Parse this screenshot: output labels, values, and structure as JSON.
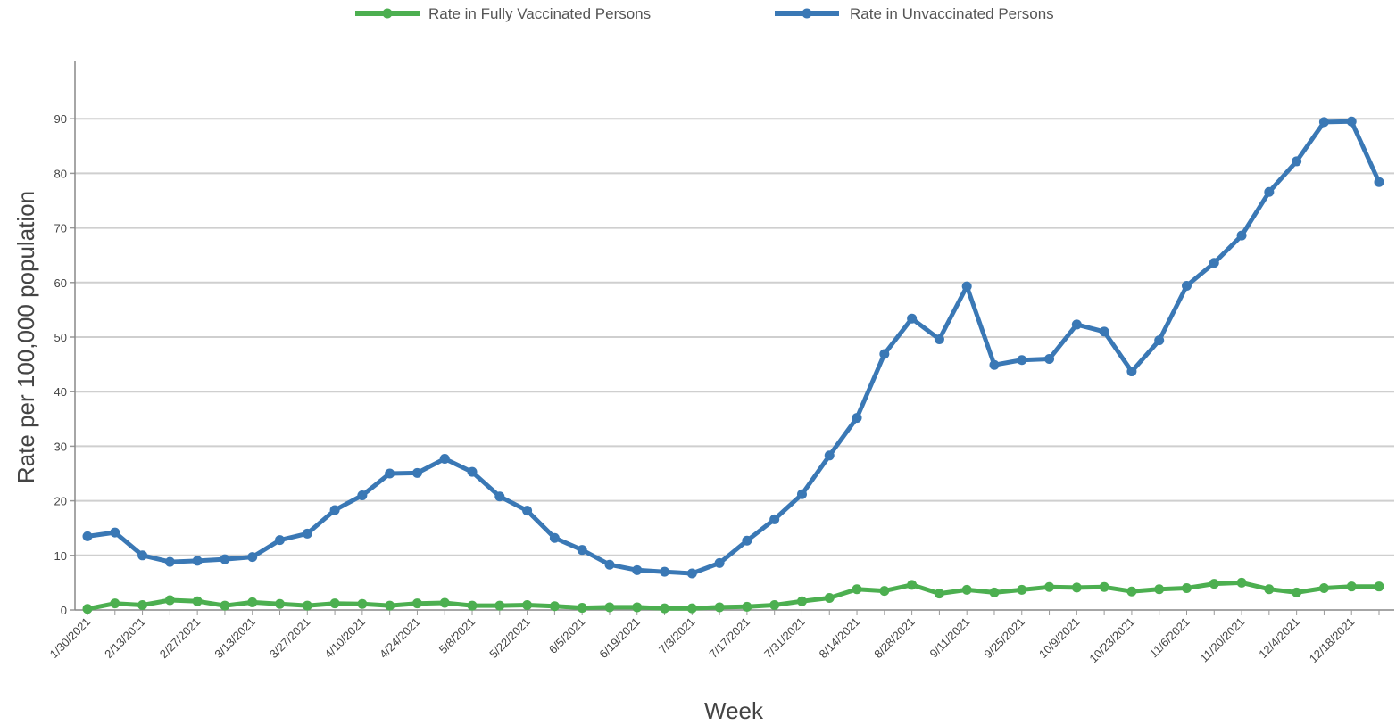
{
  "chart_data": {
    "type": "line",
    "xlabel": "Week",
    "ylabel": "Rate per 100,000 population",
    "ylim": [
      0,
      100
    ],
    "yticks": [
      0,
      10,
      20,
      30,
      40,
      50,
      60,
      70,
      80,
      90
    ],
    "grid": true,
    "legend_position": "top",
    "x_tick_labels": [
      "1/30/2021",
      "2/13/2021",
      "2/27/2021",
      "3/13/2021",
      "3/27/2021",
      "4/10/2021",
      "4/24/2021",
      "5/8/2021",
      "5/22/2021",
      "6/5/2021",
      "6/19/2021",
      "7/3/2021",
      "7/17/2021",
      "7/31/2021",
      "8/14/2021",
      "8/28/2021",
      "9/11/2021",
      "9/25/2021",
      "10/9/2021",
      "10/23/2021",
      "11/6/2021",
      "11/20/2021",
      "12/4/2021",
      "12/18/2021"
    ],
    "x": [
      "1/30/2021",
      "2/6/2021",
      "2/13/2021",
      "2/20/2021",
      "2/27/2021",
      "3/6/2021",
      "3/13/2021",
      "3/20/2021",
      "3/27/2021",
      "4/3/2021",
      "4/10/2021",
      "4/17/2021",
      "4/24/2021",
      "5/1/2021",
      "5/8/2021",
      "5/15/2021",
      "5/22/2021",
      "5/29/2021",
      "6/5/2021",
      "6/12/2021",
      "6/19/2021",
      "6/26/2021",
      "7/3/2021",
      "7/10/2021",
      "7/17/2021",
      "7/24/2021",
      "7/31/2021",
      "8/7/2021",
      "8/14/2021",
      "8/21/2021",
      "8/28/2021",
      "9/4/2021",
      "9/11/2021",
      "9/18/2021",
      "9/25/2021",
      "10/2/2021",
      "10/9/2021",
      "10/16/2021",
      "10/23/2021",
      "10/30/2021",
      "11/6/2021",
      "11/13/2021",
      "11/20/2021",
      "11/27/2021",
      "12/4/2021",
      "12/11/2021",
      "12/18/2021",
      "12/25/2021"
    ],
    "series": [
      {
        "name": "Rate in Fully Vaccinated Persons",
        "color": "#4caf50",
        "values": [
          0.2,
          1.2,
          0.9,
          1.8,
          1.6,
          0.8,
          1.4,
          1.1,
          0.8,
          1.2,
          1.1,
          0.8,
          1.2,
          1.3,
          0.8,
          0.8,
          0.9,
          0.7,
          0.4,
          0.5,
          0.5,
          0.3,
          0.3,
          0.5,
          0.6,
          0.9,
          1.6,
          2.2,
          3.8,
          3.5,
          4.6,
          3.0,
          3.7,
          3.2,
          3.7,
          4.2,
          4.1,
          4.2,
          3.4,
          3.8,
          4.0,
          4.8,
          5.0,
          3.8,
          3.2,
          4.0,
          4.3,
          4.3
        ]
      },
      {
        "name": "Rate in Unvaccinated Persons",
        "color": "#3a78b5",
        "values": [
          13.5,
          14.2,
          10.0,
          8.8,
          9.0,
          9.3,
          9.7,
          12.8,
          14.0,
          18.3,
          21.0,
          25.0,
          25.1,
          27.7,
          25.3,
          20.8,
          18.2,
          13.2,
          11.0,
          8.3,
          7.3,
          7.0,
          6.7,
          8.6,
          12.7,
          16.6,
          21.2,
          28.3,
          35.2,
          46.9,
          53.4,
          49.6,
          59.3,
          44.9,
          45.8,
          46.0,
          52.3,
          51.0,
          43.7,
          49.4,
          59.4,
          63.6,
          68.6,
          76.6,
          82.2,
          89.4,
          89.5,
          78.4
        ]
      }
    ]
  }
}
